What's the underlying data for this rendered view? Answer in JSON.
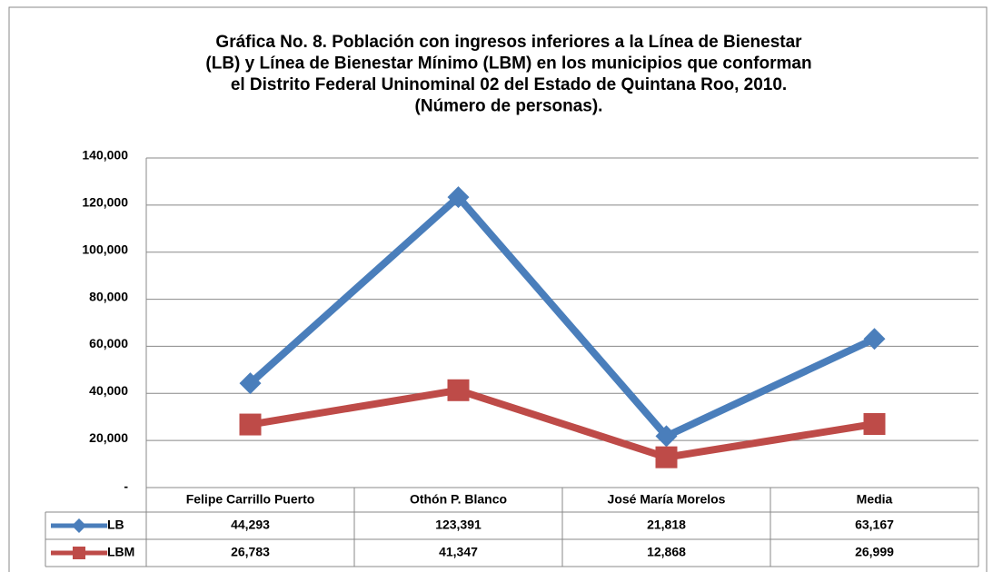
{
  "chart_data": {
    "type": "line",
    "title": [
      "Gráfica No. 8. Población con ingresos inferiores a la Línea de Bienestar",
      "(LB) y Línea de Bienestar Mínimo (LBM) en los municipios que conforman",
      "el Distrito Federal Uninominal 02 del Estado de Quintana Roo, 2010.",
      "(Número de personas)."
    ],
    "categories": [
      "Felipe Carrillo Puerto",
      "Othón P. Blanco",
      "José María Morelos",
      "Media"
    ],
    "series": [
      {
        "name": "LB",
        "color": "#4a7ebb",
        "marker": "diamond",
        "values": [
          44293,
          123391,
          21818,
          63167
        ],
        "value_labels": [
          "44,293",
          "123,391",
          "21,818",
          "63,167"
        ]
      },
      {
        "name": "LBM",
        "color": "#be4b48",
        "marker": "square",
        "values": [
          26783,
          41347,
          12868,
          26999
        ],
        "value_labels": [
          "26,783",
          "41,347",
          "12,868",
          "26,999"
        ]
      }
    ],
    "ylim": [
      0,
      140000
    ],
    "yticks": [
      {
        "value": 0,
        "label": "-"
      },
      {
        "value": 20000,
        "label": "20,000"
      },
      {
        "value": 40000,
        "label": "40,000"
      },
      {
        "value": 60000,
        "label": "60,000"
      },
      {
        "value": 80000,
        "label": "80,000"
      },
      {
        "value": 100000,
        "label": "100,000"
      },
      {
        "value": 120000,
        "label": "120,000"
      },
      {
        "value": 140000,
        "label": "140,000"
      }
    ],
    "grid": true
  }
}
